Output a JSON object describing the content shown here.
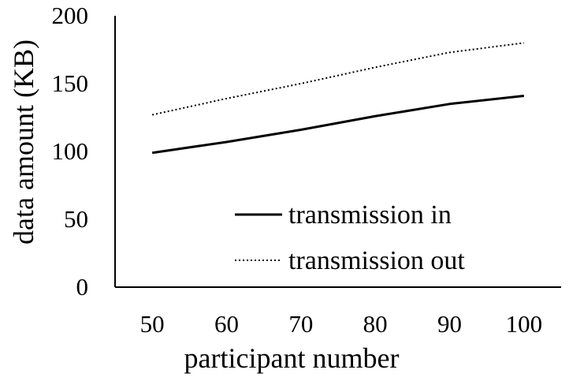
{
  "chart_data": {
    "type": "line",
    "title": "",
    "xlabel": "participant number",
    "ylabel": "data amount (KB)",
    "categories": [
      "50",
      "60",
      "70",
      "80",
      "90",
      "100"
    ],
    "x": [
      50,
      60,
      70,
      80,
      90,
      100
    ],
    "ylim": [
      0,
      200
    ],
    "yticks": [
      "0",
      "50",
      "100",
      "150",
      "200"
    ],
    "grid": false,
    "legend_position": "bottom-right",
    "series": [
      {
        "name": "transmission in",
        "style": "solid",
        "color": "#000000",
        "values": [
          99,
          107,
          116,
          126,
          135,
          141
        ]
      },
      {
        "name": "transmission out",
        "style": "dotted",
        "color": "#000000",
        "values": [
          127,
          139,
          150,
          162,
          173,
          180
        ]
      }
    ]
  }
}
